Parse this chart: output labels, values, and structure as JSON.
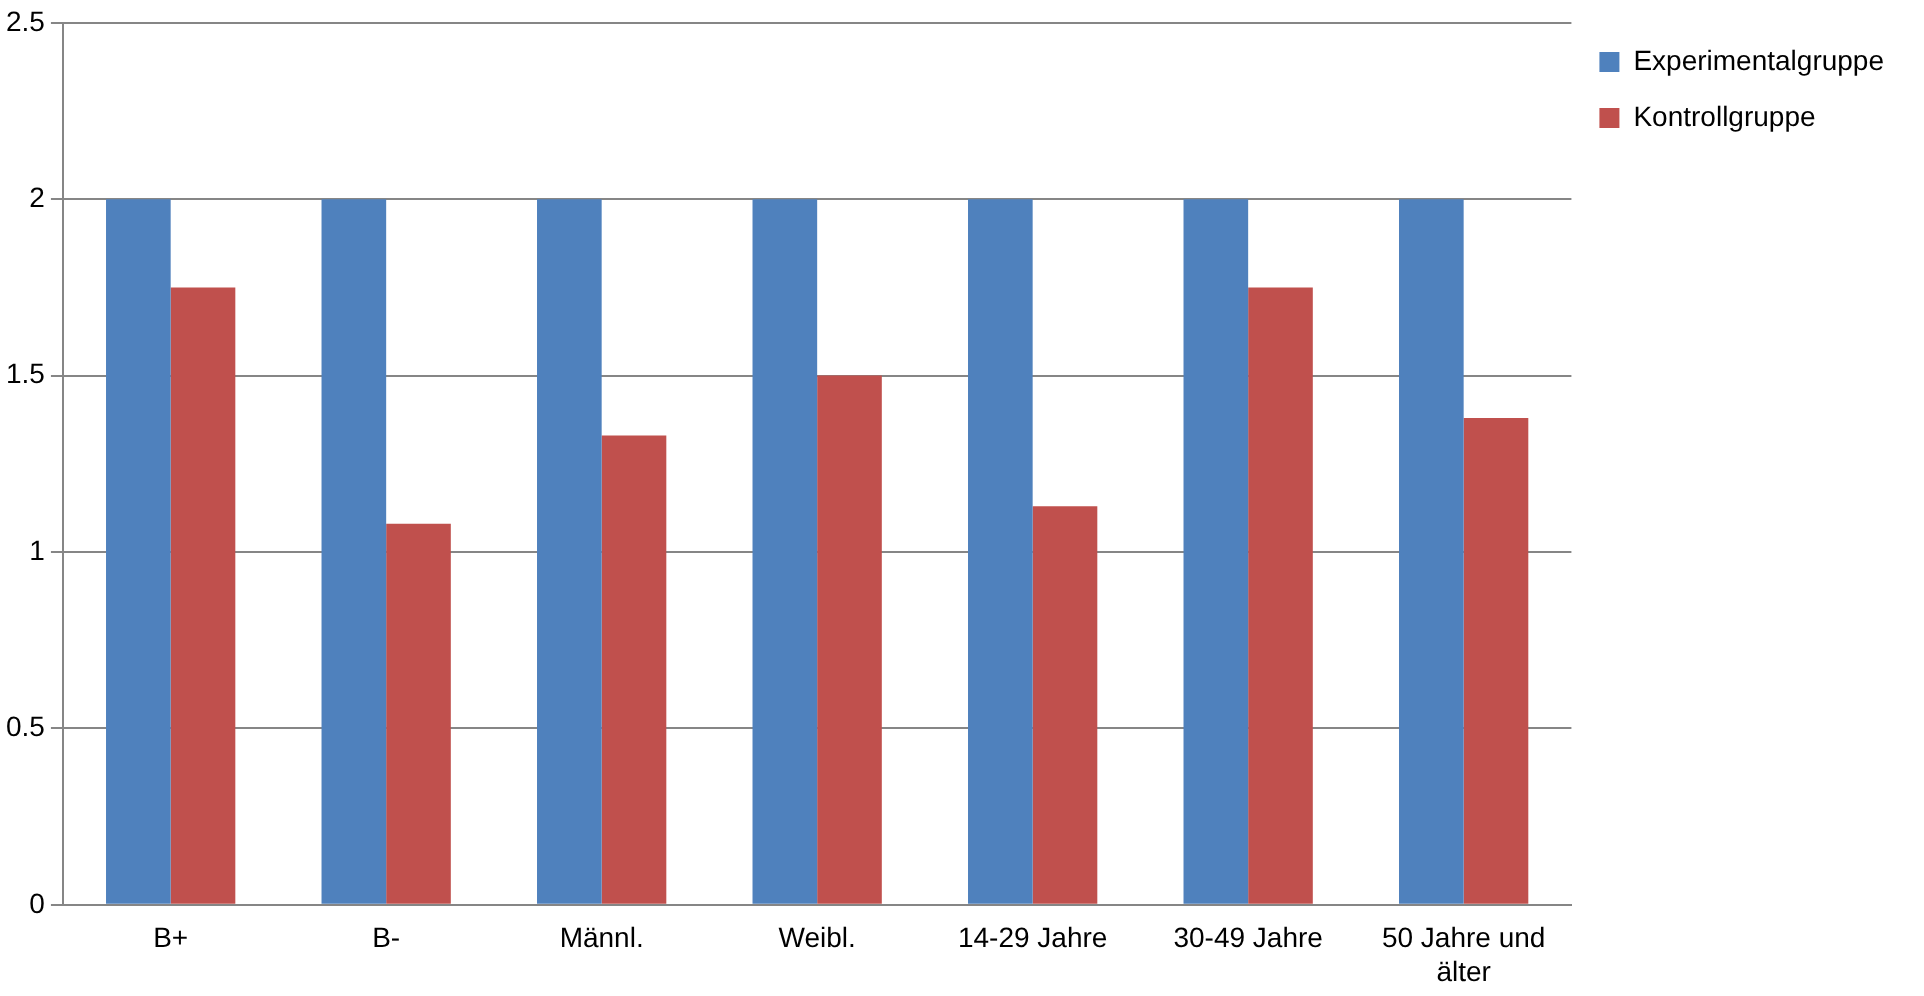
{
  "chart_data": {
    "type": "bar",
    "categories": [
      "B+",
      "B-",
      "Männl.",
      "Weibl.",
      "14-29 Jahre",
      "30-49 Jahre",
      "50 Jahre und älter"
    ],
    "series": [
      {
        "name": "Experimentalgruppe",
        "color": "#4f81bd",
        "values": [
          2,
          2,
          2,
          2,
          2,
          2,
          2
        ]
      },
      {
        "name": "Kontrollgruppe",
        "color": "#c0504d",
        "values": [
          1.75,
          1.08,
          1.33,
          1.5,
          1.13,
          1.75,
          1.38
        ]
      }
    ],
    "ylim": [
      0,
      2.5
    ],
    "yticks": [
      0,
      0.5,
      1,
      1.5,
      2,
      2.5
    ],
    "grid": "y",
    "legend": "right"
  }
}
